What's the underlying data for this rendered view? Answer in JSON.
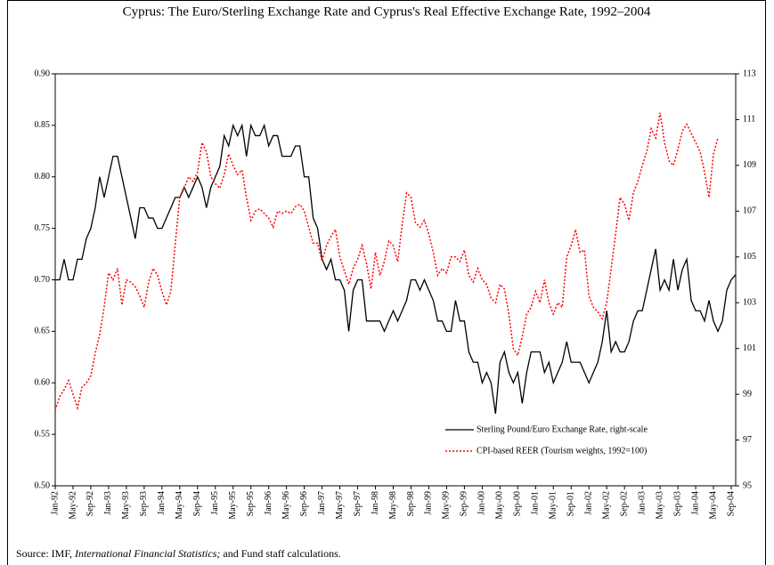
{
  "chart_data": {
    "type": "line",
    "title": "Cyprus: The Euro/Sterling Exchange Rate and Cyprus's Real Effective Exchange Rate, 1992–2004",
    "source": [
      "Source:  IMF, ",
      "International Financial Statistics;",
      "  and Fund staff calculations."
    ],
    "categories": [
      "Jan-92",
      null,
      null,
      null,
      "May-92",
      null,
      null,
      null,
      "Sep-92",
      null,
      null,
      null,
      "Jan-93",
      null,
      null,
      null,
      "May-93",
      null,
      null,
      null,
      "Sep-93",
      null,
      null,
      null,
      "Jan-94",
      null,
      null,
      null,
      "May-94",
      null,
      null,
      null,
      "Sep-94",
      null,
      null,
      null,
      "Jan-95",
      null,
      null,
      null,
      "May-95",
      null,
      null,
      null,
      "Sep-95",
      null,
      null,
      null,
      "Jan-96",
      null,
      null,
      null,
      "May-96",
      null,
      null,
      null,
      "Sep-96",
      null,
      null,
      null,
      "Jan-97",
      null,
      null,
      null,
      "May-97",
      null,
      null,
      null,
      "Sep-97",
      null,
      null,
      null,
      "Jan-98",
      null,
      null,
      null,
      "May-98",
      null,
      null,
      null,
      "Sep-98",
      null,
      null,
      null,
      "Jan-99",
      null,
      null,
      null,
      "May-99",
      null,
      null,
      null,
      "Sep-99",
      null,
      null,
      null,
      "Jan-00",
      null,
      null,
      null,
      "May-00",
      null,
      null,
      null,
      "Sep-00",
      null,
      null,
      null,
      "Jan-01",
      null,
      null,
      null,
      "May-01",
      null,
      null,
      null,
      "Sep-01",
      null,
      null,
      null,
      "Jan-02",
      null,
      null,
      null,
      "May-02",
      null,
      null,
      null,
      "Sep-02",
      null,
      null,
      null,
      "Jan-03",
      null,
      null,
      null,
      "May-03",
      null,
      null,
      null,
      "Sep-03",
      null,
      null,
      null,
      "Jan-04",
      null,
      null,
      null,
      "May-04",
      null,
      null,
      null,
      "Sep-04",
      null
    ],
    "series": [
      {
        "name": "Sterling Pound/Euro Exchange Rate, right-scale",
        "color": "#000000",
        "style": "solid",
        "axis": "y",
        "values": [
          0.7,
          0.7,
          0.72,
          0.7,
          0.7,
          0.72,
          0.72,
          0.74,
          0.75,
          0.77,
          0.8,
          0.78,
          0.8,
          0.82,
          0.82,
          0.8,
          0.78,
          0.76,
          0.74,
          0.77,
          0.77,
          0.76,
          0.76,
          0.75,
          0.75,
          0.76,
          0.77,
          0.78,
          0.78,
          0.79,
          0.78,
          0.79,
          0.8,
          0.79,
          0.77,
          0.79,
          0.8,
          0.81,
          0.84,
          0.83,
          0.85,
          0.84,
          0.85,
          0.82,
          0.85,
          0.84,
          0.84,
          0.85,
          0.83,
          0.84,
          0.84,
          0.82,
          0.82,
          0.82,
          0.83,
          0.83,
          0.8,
          0.8,
          0.76,
          0.75,
          0.72,
          0.71,
          0.72,
          0.7,
          0.7,
          0.69,
          0.65,
          0.69,
          0.7,
          0.7,
          0.66,
          0.66,
          0.66,
          0.66,
          0.65,
          0.66,
          0.67,
          0.66,
          0.67,
          0.68,
          0.7,
          0.7,
          0.69,
          0.7,
          0.69,
          0.68,
          0.66,
          0.66,
          0.65,
          0.65,
          0.68,
          0.66,
          0.66,
          0.63,
          0.62,
          0.62,
          0.6,
          0.61,
          0.6,
          0.57,
          0.62,
          0.63,
          0.61,
          0.6,
          0.61,
          0.58,
          0.61,
          0.63,
          0.63,
          0.63,
          0.61,
          0.62,
          0.6,
          0.61,
          0.62,
          0.64,
          0.62,
          0.62,
          0.62,
          0.61,
          0.6,
          0.61,
          0.62,
          0.64,
          0.67,
          0.63,
          0.64,
          0.63,
          0.63,
          0.64,
          0.66,
          0.67,
          0.67,
          0.69,
          0.71,
          0.73,
          0.69,
          0.7,
          0.69,
          0.72,
          0.69,
          0.71,
          0.72,
          0.68,
          0.67,
          0.67,
          0.66,
          0.68,
          0.66,
          0.65,
          0.66,
          0.69,
          0.7,
          0.705
        ]
      },
      {
        "name": "CPI-based REER (Tourism weights, 1992=100)",
        "color": "#ff0000",
        "style": "dotted",
        "axis": "y2",
        "values": [
          98.3,
          98.9,
          99.2,
          99.6,
          99.0,
          98.4,
          99.3,
          99.5,
          99.8,
          100.8,
          101.6,
          102.8,
          104.3,
          104.0,
          104.5,
          102.9,
          104.0,
          103.9,
          103.7,
          103.3,
          102.8,
          103.9,
          104.5,
          104.2,
          103.5,
          102.9,
          103.5,
          105.6,
          107.6,
          108.0,
          108.5,
          108.3,
          108.7,
          110.0,
          109.6,
          108.5,
          108.2,
          108.0,
          108.6,
          109.5,
          109.0,
          108.6,
          108.8,
          107.6,
          106.6,
          107.0,
          107.1,
          106.9,
          106.7,
          106.3,
          107.0,
          106.9,
          107.0,
          106.9,
          107.2,
          107.3,
          107.0,
          106.3,
          105.6,
          105.6,
          104.8,
          105.5,
          105.9,
          106.2,
          105.0,
          104.4,
          103.8,
          104.5,
          104.9,
          105.5,
          104.7,
          103.6,
          105.2,
          104.2,
          104.8,
          105.7,
          105.5,
          104.8,
          106.4,
          107.8,
          107.6,
          106.5,
          106.3,
          106.6,
          106.0,
          105.2,
          104.2,
          104.5,
          104.3,
          105.0,
          105.0,
          104.8,
          105.3,
          104.2,
          103.9,
          104.5,
          104.0,
          103.8,
          103.2,
          103.0,
          103.8,
          103.6,
          102.5,
          101.0,
          100.7,
          101.5,
          102.5,
          102.8,
          103.5,
          103.0,
          104.0,
          103.0,
          102.5,
          103.0,
          102.8,
          105.0,
          105.5,
          106.2,
          105.2,
          105.3,
          103.3,
          102.8,
          102.6,
          102.3,
          103.0,
          104.5,
          106.0,
          107.6,
          107.3,
          106.6,
          107.8,
          108.3,
          109.0,
          109.6,
          110.6,
          110.2,
          111.3,
          110.0,
          109.2,
          109.0,
          109.7,
          110.5,
          110.8,
          110.4,
          110.0,
          109.6,
          108.7,
          107.6,
          109.5,
          110.2,
          null,
          null,
          null,
          null
        ]
      }
    ],
    "ylim": [
      0.5,
      0.9
    ],
    "yticks": [
      {
        "value": 0.5,
        "label": "0.50"
      },
      {
        "value": 0.55,
        "label": "0.55"
      },
      {
        "value": 0.6,
        "label": "0.60"
      },
      {
        "value": 0.65,
        "label": "0.65"
      },
      {
        "value": 0.7,
        "label": "0.70"
      },
      {
        "value": 0.75,
        "label": "0.75"
      },
      {
        "value": 0.8,
        "label": "0.80"
      },
      {
        "value": 0.85,
        "label": "0.85"
      },
      {
        "value": 0.9,
        "label": "0.90"
      }
    ],
    "y2lim": [
      95,
      113
    ],
    "y2ticks": [
      95,
      97,
      99,
      101,
      103,
      105,
      107,
      109,
      111,
      113
    ],
    "grid": false
  }
}
